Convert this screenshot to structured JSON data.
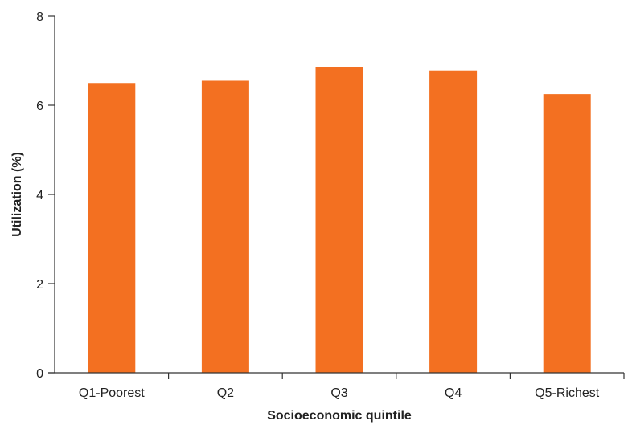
{
  "chart_data": {
    "type": "bar",
    "categories": [
      "Q1-Poorest",
      "Q2",
      "Q3",
      "Q4",
      "Q5-Richest"
    ],
    "values": [
      6.5,
      6.55,
      6.85,
      6.78,
      6.25
    ],
    "xlabel": "Socioeconomic quintile",
    "ylabel": "Utilization (%)",
    "ylim": [
      0,
      8
    ],
    "yticks": [
      "0",
      "2",
      "4",
      "6",
      "8"
    ],
    "grid": false,
    "bar_color": "#f37021"
  }
}
